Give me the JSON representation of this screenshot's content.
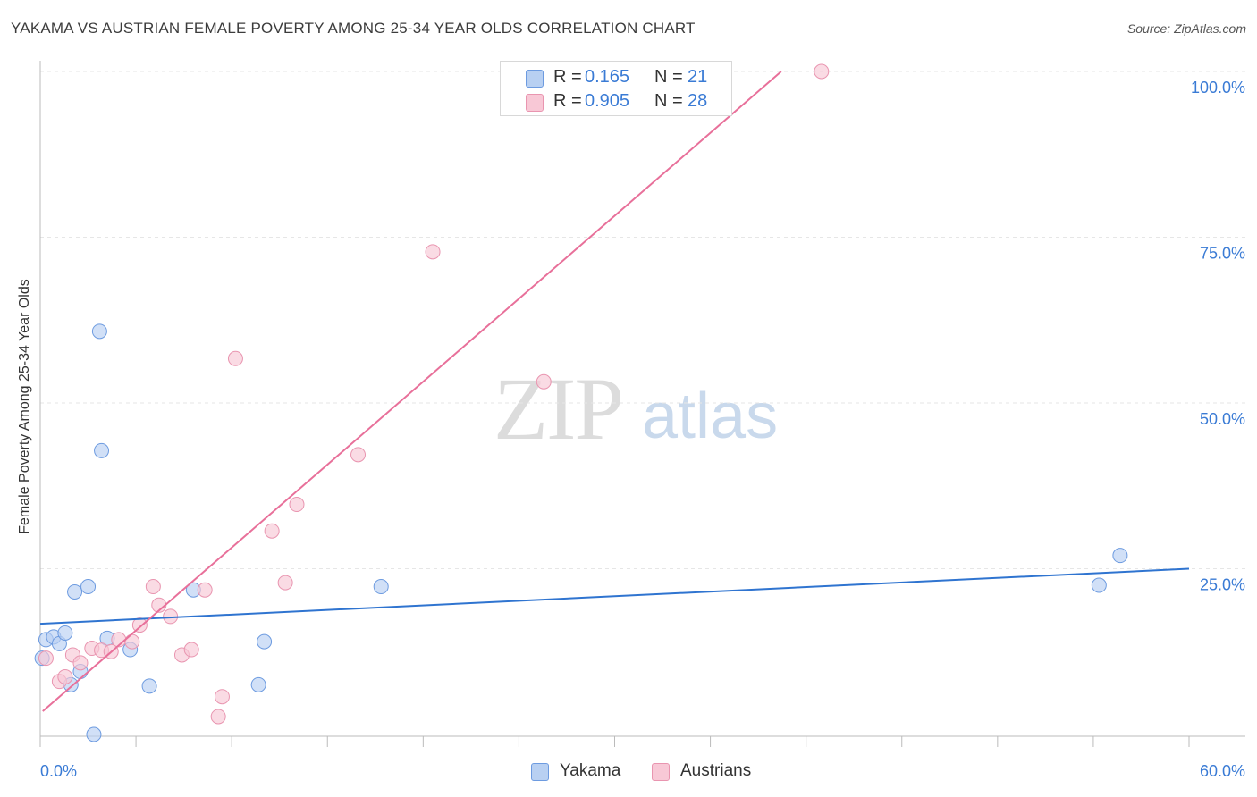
{
  "title": "YAKAMA VS AUSTRIAN FEMALE POVERTY AMONG 25-34 YEAR OLDS CORRELATION CHART",
  "source": "Source: ZipAtlas.com",
  "watermark": {
    "zip": "ZIP",
    "atlas": "atlas"
  },
  "legend": {
    "r_label": "R =",
    "n_label": "N =",
    "items": [
      {
        "name": "Yakama",
        "r": "0.165",
        "n": "21",
        "fill": "#b8d0f2",
        "stroke": "#6d9be0"
      },
      {
        "name": "Austrians",
        "r": "0.905",
        "n": "28",
        "fill": "#f8c8d6",
        "stroke": "#e995b0"
      }
    ]
  },
  "colors": {
    "blue_line": "#2f74d0",
    "pink_line": "#e8709a",
    "tick_label": "#3a7bd5",
    "grid": "#e6e6e6"
  },
  "chart_data": {
    "type": "scatter",
    "title": "YAKAMA VS AUSTRIAN FEMALE POVERTY AMONG 25-34 YEAR OLDS CORRELATION CHART",
    "xlabel": "",
    "ylabel": "Female Poverty Among 25-34 Year Olds",
    "xlim": [
      0,
      60
    ],
    "ylim": [
      0,
      100
    ],
    "x_tick_labels": [
      "0.0%",
      "60.0%"
    ],
    "y_ticks": [
      25,
      50,
      75,
      100
    ],
    "y_tick_labels": [
      "25.0%",
      "50.0%",
      "75.0%",
      "100.0%"
    ],
    "grid": true,
    "legend_position": "top-center and bottom",
    "series": [
      {
        "name": "Yakama",
        "points": [
          [
            0.1,
            11.5
          ],
          [
            0.3,
            14.3
          ],
          [
            0.7,
            14.7
          ],
          [
            1.0,
            13.7
          ],
          [
            1.3,
            15.3
          ],
          [
            1.6,
            7.5
          ],
          [
            1.8,
            21.5
          ],
          [
            2.1,
            9.5
          ],
          [
            2.5,
            22.3
          ],
          [
            2.8,
            0.0
          ],
          [
            3.1,
            60.8
          ],
          [
            3.2,
            42.8
          ],
          [
            3.5,
            14.5
          ],
          [
            4.7,
            12.8
          ],
          [
            5.7,
            7.3
          ],
          [
            8.0,
            21.8
          ],
          [
            11.4,
            7.5
          ],
          [
            11.7,
            14.0
          ],
          [
            17.8,
            22.3
          ],
          [
            55.3,
            22.5
          ],
          [
            56.4,
            27.0
          ]
        ],
        "trend": {
          "x": [
            0,
            60
          ],
          "y": [
            16.7,
            25.0
          ]
        }
      },
      {
        "name": "Austrians",
        "points": [
          [
            0.3,
            11.5
          ],
          [
            1.0,
            8.0
          ],
          [
            1.3,
            8.7
          ],
          [
            1.7,
            12.0
          ],
          [
            2.1,
            10.8
          ],
          [
            2.7,
            13.0
          ],
          [
            3.2,
            12.7
          ],
          [
            3.7,
            12.5
          ],
          [
            4.1,
            14.3
          ],
          [
            4.8,
            14.0
          ],
          [
            5.2,
            16.5
          ],
          [
            5.9,
            22.3
          ],
          [
            6.2,
            19.5
          ],
          [
            6.8,
            17.8
          ],
          [
            7.4,
            12.0
          ],
          [
            7.9,
            12.8
          ],
          [
            8.6,
            21.8
          ],
          [
            9.3,
            2.7
          ],
          [
            9.5,
            5.7
          ],
          [
            10.2,
            56.7
          ],
          [
            12.1,
            30.7
          ],
          [
            12.8,
            22.9
          ],
          [
            13.4,
            34.7
          ],
          [
            16.6,
            42.2
          ],
          [
            20.5,
            72.8
          ],
          [
            26.3,
            53.2
          ],
          [
            31.0,
            100.0
          ],
          [
            40.8,
            100.0
          ]
        ],
        "trend": {
          "x": [
            0.13,
            38.7
          ],
          "y": [
            3.5,
            100.0
          ]
        }
      }
    ]
  }
}
